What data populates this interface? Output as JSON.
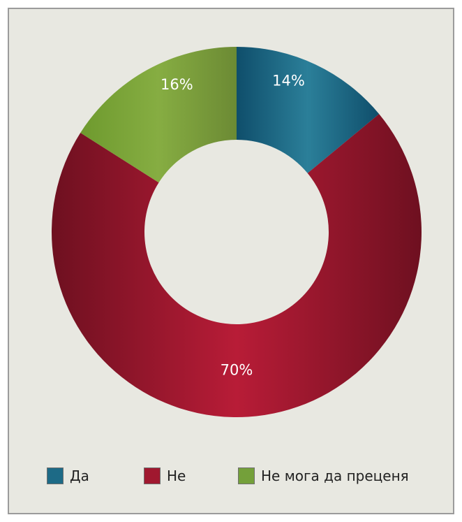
{
  "chart_data": {
    "type": "pie",
    "variant": "donut",
    "categories": [
      "Да",
      "Не",
      "Не мога да преценя"
    ],
    "values": [
      14,
      70,
      16
    ],
    "value_labels": [
      "14%",
      "70%",
      "16%"
    ],
    "colors": [
      "#1d6a86",
      "#a0182f",
      "#74a03a"
    ],
    "start_angle_deg": 0,
    "direction": "clockwise",
    "legend_position": "bottom",
    "title": "",
    "grid": false
  },
  "legend": {
    "items": [
      {
        "label": "Да",
        "color": "#1d6a86"
      },
      {
        "label": "Не",
        "color": "#a0182f"
      },
      {
        "label": "Не мога да преценя",
        "color": "#74a03a"
      }
    ]
  },
  "background_color": "#e8e8e1"
}
